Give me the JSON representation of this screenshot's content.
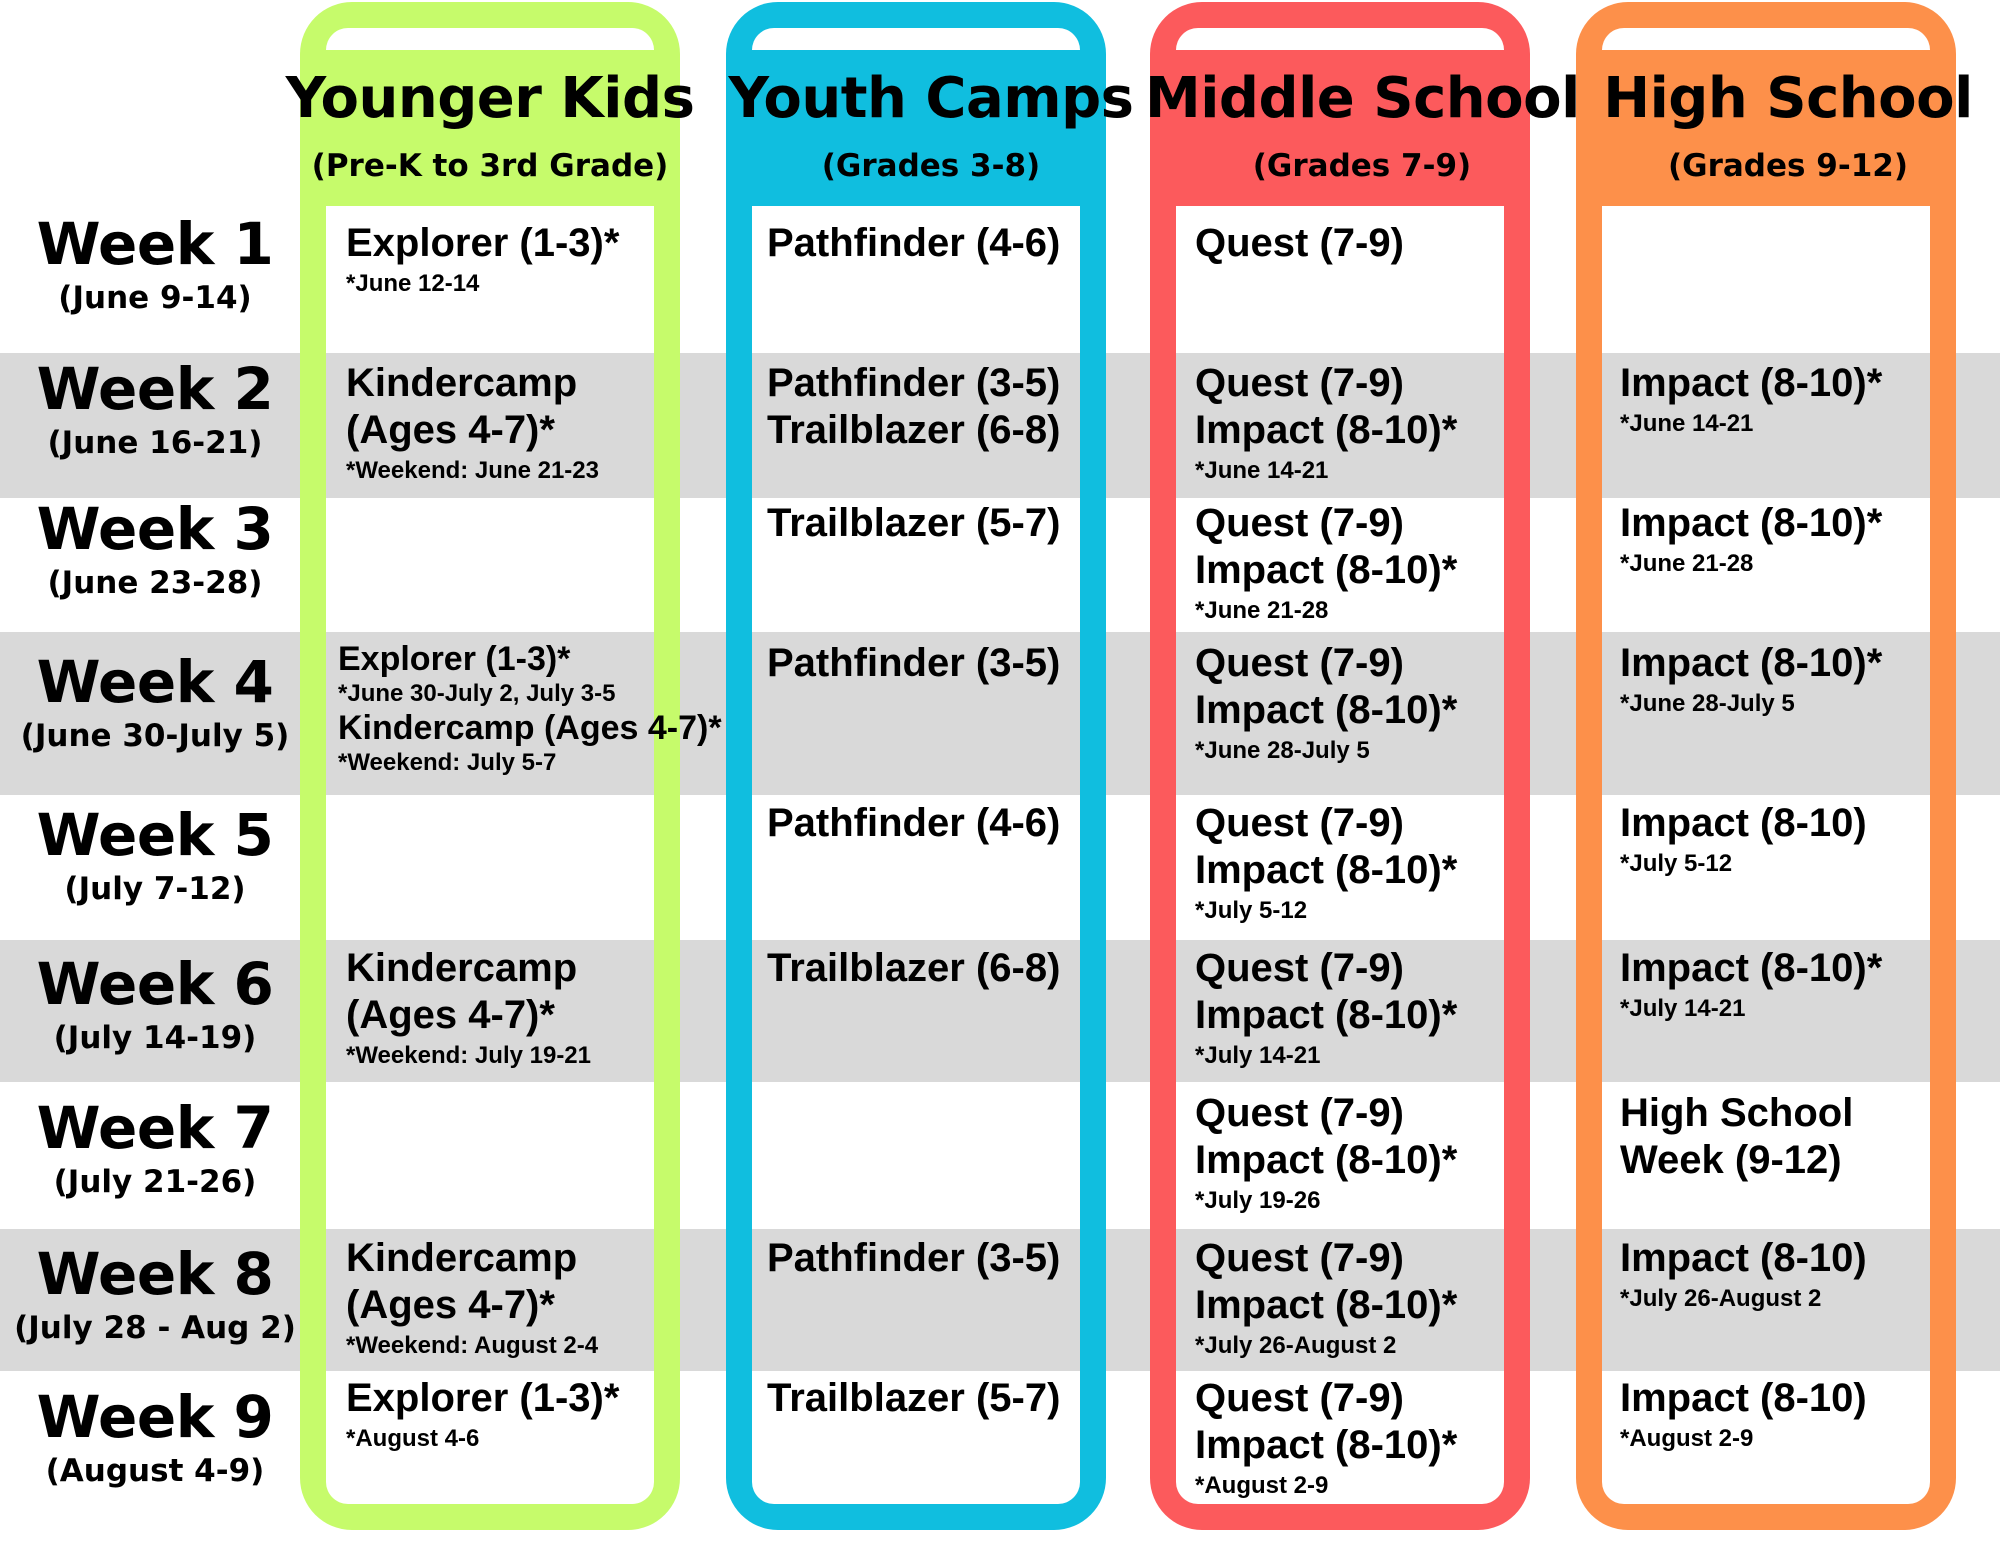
{
  "colors": {
    "younger_kids": "#c6fb6b",
    "youth_camps": "#10bedf",
    "middle_school": "#fc5a5c",
    "high_school": "#fd904a",
    "row_band": "#d9d9d9"
  },
  "columns": [
    {
      "title": "Younger Kids",
      "subtitle": "(Pre-K to 3rd Grade)"
    },
    {
      "title": "Youth Camps",
      "subtitle": "(Grades 3-8)"
    },
    {
      "title": "Middle School",
      "subtitle": "(Grades 7-9)"
    },
    {
      "title": "High School",
      "subtitle": "(Grades 9-12)"
    }
  ],
  "weeks": [
    {
      "label": "Week 1",
      "dates": "(June 9-14)"
    },
    {
      "label": "Week 2",
      "dates": "(June 16-21)"
    },
    {
      "label": "Week 3",
      "dates": "(June 23-28)"
    },
    {
      "label": "Week 4",
      "dates": "(June 30-July 5)"
    },
    {
      "label": "Week 5",
      "dates": "(July 7-12)"
    },
    {
      "label": "Week 6",
      "dates": "(July 14-19)"
    },
    {
      "label": "Week 7",
      "dates": "(July 21-26)"
    },
    {
      "label": "Week 8",
      "dates": "(July 28 - Aug 2)"
    },
    {
      "label": "Week 9",
      "dates": "(August 4-9)"
    }
  ],
  "cells": {
    "younger_kids": [
      {
        "main": [
          "Explorer (1-3)*"
        ],
        "note": "*June 12-14"
      },
      {
        "main": [
          "Kindercamp",
          "(Ages 4-7)*"
        ],
        "note": "*Weekend: June 21-23"
      },
      {
        "main": [],
        "note": ""
      },
      {
        "lines": [
          {
            "text": "Explorer (1-3)*",
            "kind": "main"
          },
          {
            "text": "*June 30-July 2, July 3-5",
            "kind": "note"
          },
          {
            "text": "Kindercamp (Ages 4-7)*",
            "kind": "main"
          },
          {
            "text": "*Weekend: July 5-7",
            "kind": "note"
          }
        ]
      },
      {
        "main": [],
        "note": ""
      },
      {
        "main": [
          "Kindercamp",
          "(Ages 4-7)*"
        ],
        "note": "*Weekend: July 19-21"
      },
      {
        "main": [],
        "note": ""
      },
      {
        "main": [
          "Kindercamp",
          "(Ages 4-7)*"
        ],
        "note": "*Weekend: August 2-4"
      },
      {
        "main": [
          "Explorer (1-3)*"
        ],
        "note": "*August 4-6"
      }
    ],
    "youth_camps": [
      {
        "main": [
          "Pathfinder (4-6)"
        ],
        "note": ""
      },
      {
        "main": [
          "Pathfinder (3-5)",
          "Trailblazer (6-8)"
        ],
        "note": ""
      },
      {
        "main": [
          "Trailblazer (5-7)"
        ],
        "note": ""
      },
      {
        "main": [
          "Pathfinder (3-5)"
        ],
        "note": ""
      },
      {
        "main": [
          "Pathfinder (4-6)"
        ],
        "note": ""
      },
      {
        "main": [
          "Trailblazer (6-8)"
        ],
        "note": ""
      },
      {
        "main": [],
        "note": ""
      },
      {
        "main": [
          "Pathfinder (3-5)"
        ],
        "note": ""
      },
      {
        "main": [
          "Trailblazer (5-7)"
        ],
        "note": ""
      }
    ],
    "middle_school": [
      {
        "main": [
          "Quest (7-9)"
        ],
        "note": ""
      },
      {
        "main": [
          "Quest (7-9)",
          "Impact (8-10)*"
        ],
        "note": "*June 14-21"
      },
      {
        "main": [
          "Quest (7-9)",
          "Impact (8-10)*"
        ],
        "note": "*June 21-28"
      },
      {
        "main": [
          "Quest (7-9)",
          "Impact (8-10)*"
        ],
        "note": "*June 28-July 5"
      },
      {
        "main": [
          "Quest (7-9)",
          "Impact (8-10)*"
        ],
        "note": "*July 5-12"
      },
      {
        "main": [
          "Quest (7-9)",
          "Impact (8-10)*"
        ],
        "note": "*July 14-21"
      },
      {
        "main": [
          "Quest (7-9)",
          "Impact (8-10)*"
        ],
        "note": "*July 19-26"
      },
      {
        "main": [
          "Quest (7-9)",
          "Impact (8-10)*"
        ],
        "note": "*July 26-August 2"
      },
      {
        "main": [
          "Quest (7-9)",
          "Impact (8-10)*"
        ],
        "note": "*August 2-9"
      }
    ],
    "high_school": [
      {
        "main": [],
        "note": ""
      },
      {
        "main": [
          "Impact (8-10)*"
        ],
        "note": "*June 14-21"
      },
      {
        "main": [
          "Impact (8-10)*"
        ],
        "note": "*June 21-28"
      },
      {
        "main": [
          "Impact (8-10)*"
        ],
        "note": "*June 28-July 5"
      },
      {
        "main": [
          "Impact (8-10)"
        ],
        "note": "*July 5-12"
      },
      {
        "main": [
          "Impact (8-10)*"
        ],
        "note": "*July 14-21"
      },
      {
        "main": [
          "High School",
          "Week (9-12)"
        ],
        "note": ""
      },
      {
        "main": [
          "Impact (8-10)"
        ],
        "note": "*July 26-August 2"
      },
      {
        "main": [
          "Impact (8-10)"
        ],
        "note": "*August 2-9"
      }
    ]
  }
}
